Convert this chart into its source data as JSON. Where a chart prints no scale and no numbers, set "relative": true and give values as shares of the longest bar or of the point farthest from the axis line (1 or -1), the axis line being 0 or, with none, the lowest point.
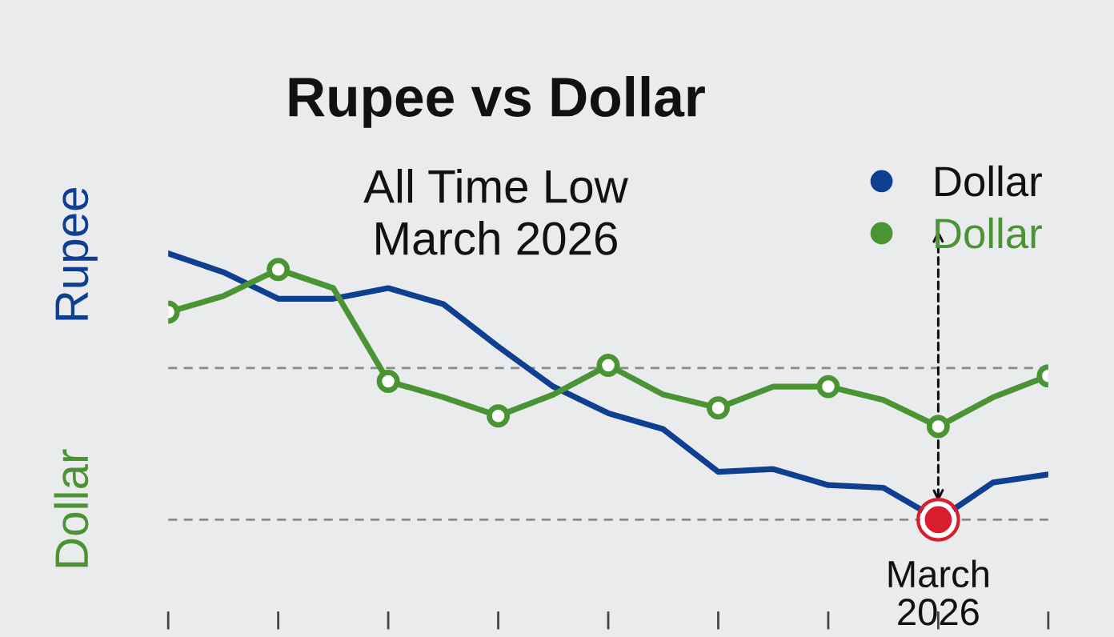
{
  "chart_data": {
    "type": "line",
    "title": "Rupee vs Dollar",
    "subtitle": "All Time Low\nMarch 2026",
    "ylabel": "Rupee",
    "relative": true,
    "categories": [
      null,
      null,
      null,
      null,
      null,
      null,
      null,
      null,
      null,
      null,
      null,
      null,
      null,
      null,
      null,
      null,
      null
    ],
    "legend": "top right",
    "series": [
      {
        "name": "Dollar",
        "color": "#0f3f91",
        "values": [
          1.0,
          0.93,
          0.83,
          0.83,
          0.87,
          0.81,
          0.65,
          0.5,
          0.4,
          0.34,
          0.18,
          0.19,
          0.13,
          0.12,
          0.0,
          0.14,
          0.17
        ]
      },
      {
        "name": "Dollar",
        "color": "#4a9434",
        "marker": "circle",
        "values": [
          0.78,
          0.84,
          0.94,
          0.87,
          0.52,
          0.46,
          0.39,
          0.47,
          0.58,
          0.47,
          0.42,
          0.5,
          0.5,
          0.45,
          0.35,
          0.46,
          0.54
        ]
      }
    ],
    "ref_lines": [
      {
        "axis": "y",
        "value": 0.57,
        "color": "#8a8a8a",
        "line_style": "dashed"
      },
      {
        "axis": "y",
        "value": 0.0,
        "color": "#8a8a8a",
        "line_style": "dashed"
      }
    ],
    "annotations": [
      "Dollar",
      "March\n2026"
    ]
  }
}
